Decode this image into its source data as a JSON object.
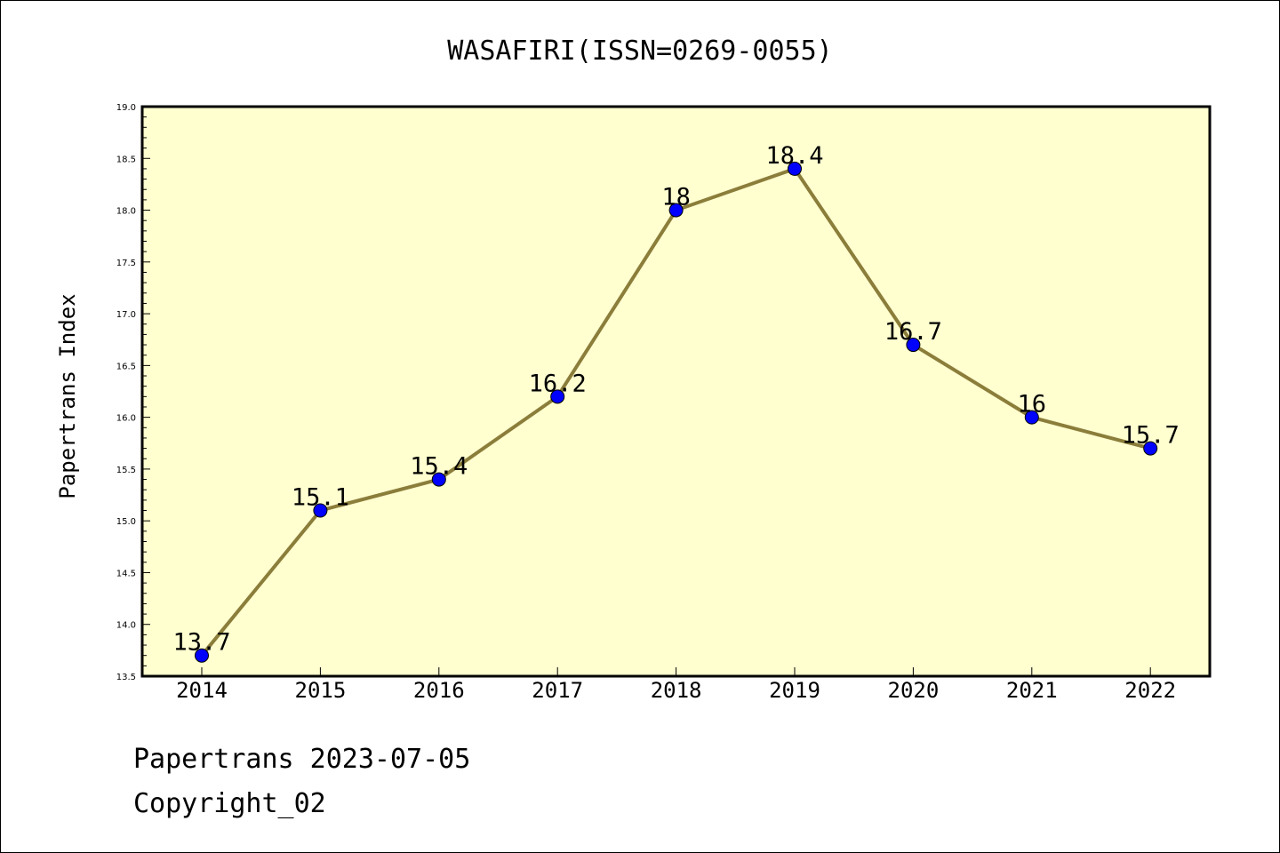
{
  "chart_data": {
    "type": "line",
    "title": "WASAFIRI(ISSN=0269-0055)",
    "xlabel": "",
    "ylabel": "Papertrans Index",
    "categories": [
      "2014",
      "2015",
      "2016",
      "2017",
      "2018",
      "2019",
      "2020",
      "2021",
      "2022"
    ],
    "series": [
      {
        "values": [
          13.7,
          15.1,
          15.4,
          16.2,
          18,
          18.4,
          16.7,
          16,
          15.7
        ],
        "data_labels": [
          "13.7",
          "15.1",
          "15.4",
          "16.2",
          "18",
          "18.4",
          "16.7",
          "16",
          "15.7"
        ]
      }
    ],
    "ylim": [
      13.5,
      19.0
    ],
    "yticks": [
      "13.5",
      "14.0",
      "14.5",
      "15.0",
      "15.5",
      "16.0",
      "16.5",
      "17.0",
      "17.5",
      "18.0",
      "18.5",
      "19.0"
    ],
    "grid": false,
    "legend": "none",
    "colors": {
      "plot_background": "#ffffd0",
      "line": "#8b7d3a",
      "marker": "#0000ff"
    }
  },
  "footer": {
    "date_text": "Papertrans 2023-07-05",
    "copyright_text": "Copyright_02"
  }
}
